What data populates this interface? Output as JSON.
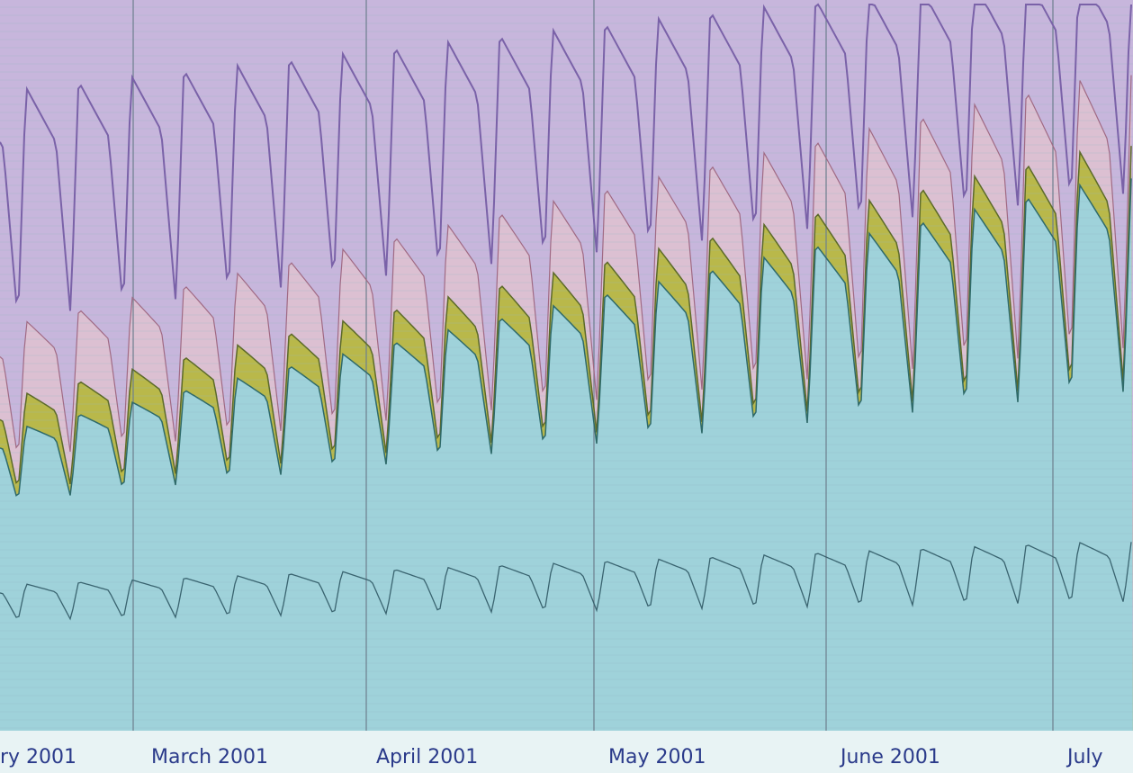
{
  "months": [
    "ry 2001",
    "March 2001",
    "April 2001",
    "May 2001",
    "June 2001",
    "July"
  ]
}
